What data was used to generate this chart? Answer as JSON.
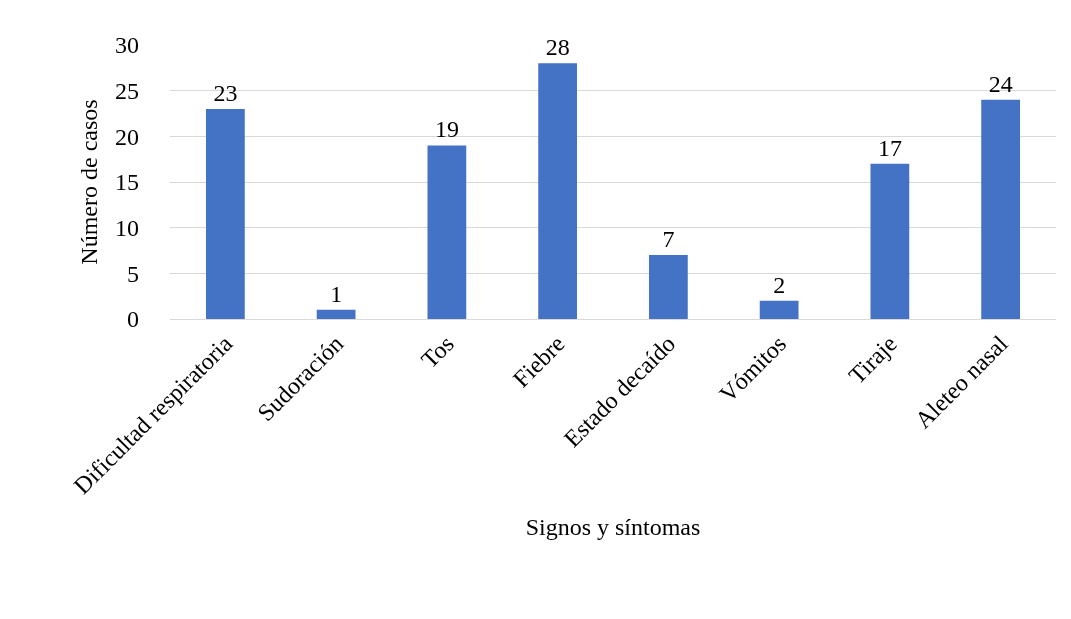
{
  "chart_data": {
    "type": "bar",
    "xlabel": "Signos y síntomas",
    "ylabel": "Número de casos",
    "categories": [
      "Dificultad respiratoria",
      "Sudoración",
      "Tos",
      "Fiebre",
      "Estado decaído",
      "Vómitos",
      "Tiraje",
      "Aleteo nasal"
    ],
    "values": [
      23,
      1,
      19,
      28,
      7,
      2,
      17,
      24
    ],
    "color": "#4472c4",
    "ylim": [
      0,
      30
    ],
    "yticks": [
      0,
      5,
      10,
      15,
      20,
      25,
      30
    ],
    "grid": "y",
    "data_labels": true,
    "legend": false
  }
}
